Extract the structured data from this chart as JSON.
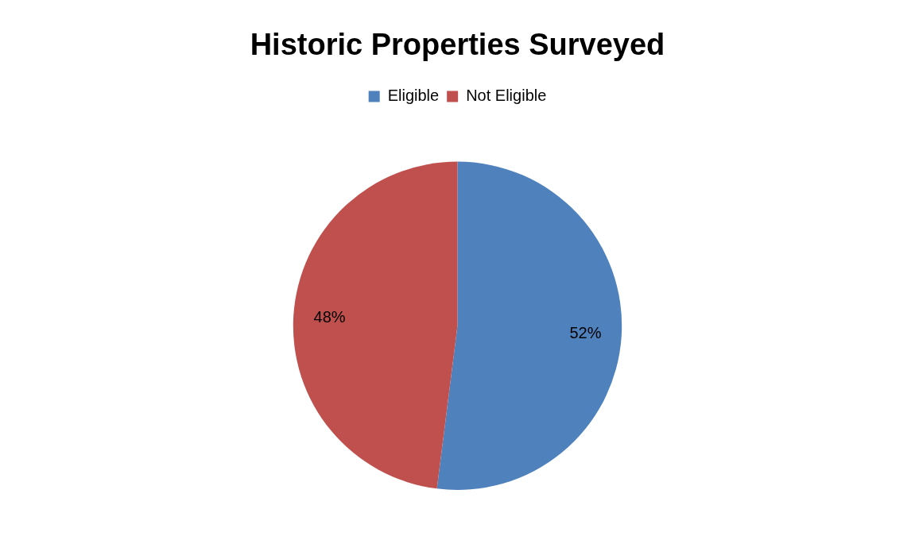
{
  "chart_data": {
    "type": "pie",
    "title": "Historic Properties Surveyed",
    "categories": [
      "Eligible",
      "Not Eligible"
    ],
    "values": [
      52,
      48
    ],
    "colors": [
      "#4f81bd",
      "#c0504d"
    ],
    "value_labels": [
      "52%",
      "48%"
    ],
    "legend": "top"
  }
}
